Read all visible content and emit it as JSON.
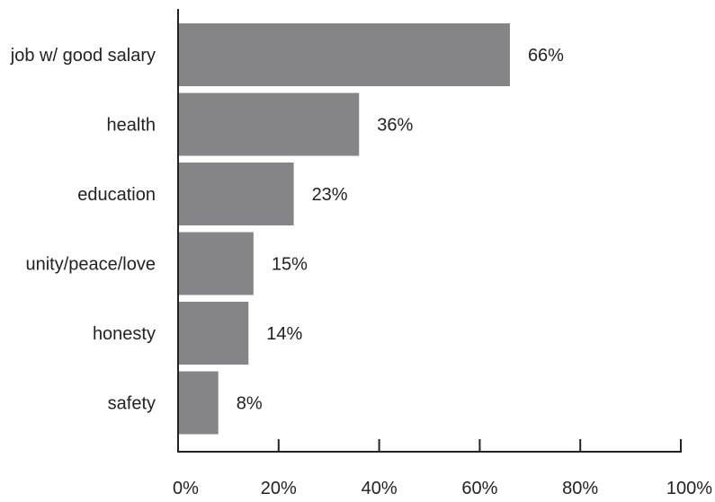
{
  "chart_data": {
    "type": "bar",
    "orientation": "horizontal",
    "categories": [
      "job w/ good salary",
      "health",
      "education",
      "unity/peace/love",
      "honesty",
      "safety"
    ],
    "values": [
      66,
      36,
      23,
      15,
      14,
      8
    ],
    "value_labels": [
      "66%",
      "36%",
      "23%",
      "15%",
      "14%",
      "8%"
    ],
    "xlim": [
      0,
      100
    ],
    "x_ticks": [
      0,
      20,
      40,
      60,
      80,
      100
    ],
    "x_tick_labels": [
      "0%",
      "20%",
      "40%",
      "60%",
      "80%",
      "100%"
    ],
    "grid": false,
    "legend": "none",
    "bar_color": "#858487",
    "axis_color": "#222222"
  }
}
